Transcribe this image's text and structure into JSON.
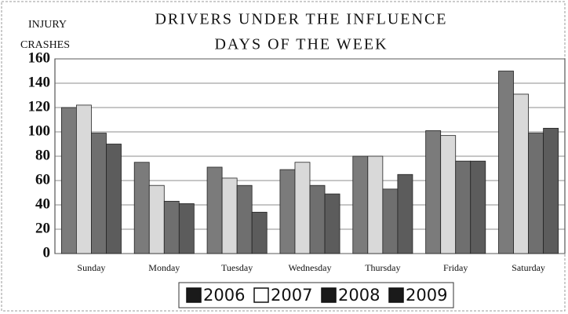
{
  "chart_data": {
    "type": "bar",
    "title": "DRIVERS UNDER THE INFLUENCE",
    "subtitle": "DAYS OF THE WEEK",
    "y_label_lines": [
      "INJURY",
      "CRASHES"
    ],
    "categories": [
      "Sunday",
      "Monday",
      "Tuesday",
      "Wednesday",
      "Thursday",
      "Friday",
      "Saturday"
    ],
    "series": [
      {
        "name": "2006",
        "color": "#7b7b7b",
        "legend_color": "#1a1a1a",
        "values": [
          120,
          75,
          71,
          69,
          80,
          101,
          150
        ]
      },
      {
        "name": "2007",
        "color": "#d9d9d9",
        "legend_color": "#ffffff",
        "values": [
          122,
          56,
          62,
          75,
          80,
          97,
          131
        ]
      },
      {
        "name": "2008",
        "color": "#6f6f6f",
        "legend_color": "#1a1a1a",
        "values": [
          99,
          43,
          56,
          56,
          53,
          76,
          99
        ]
      },
      {
        "name": "2009",
        "color": "#5c5c5c",
        "legend_color": "#1a1a1a",
        "values": [
          90,
          41,
          34,
          49,
          65,
          76,
          103
        ]
      }
    ],
    "ylim": [
      0,
      160
    ],
    "yticks": [
      0,
      20,
      40,
      60,
      80,
      100,
      120,
      140,
      160
    ],
    "grid": true,
    "legend": "bottom"
  }
}
